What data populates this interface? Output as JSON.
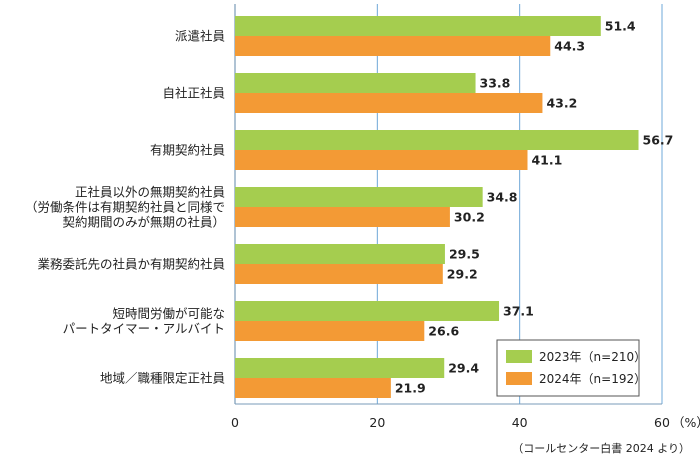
{
  "chart_data": {
    "type": "bar",
    "orientation": "horizontal",
    "categories": [
      [
        "派遣社員"
      ],
      [
        "自社正社員"
      ],
      [
        "有期契約社員"
      ],
      [
        "正社員以外の無期契約社員",
        "（労働条件は有期契約社員と同様で",
        "契約期間のみが無期の社員）"
      ],
      [
        "業務委託先の社員か有期契約社員"
      ],
      [
        "短時間労働が可能な",
        "パートタイマー・アルバイト"
      ],
      [
        "地域／職種限定正社員"
      ]
    ],
    "series": [
      {
        "name": "2023年（n=210）",
        "color": "#a5cd4f",
        "values": [
          51.4,
          33.8,
          56.7,
          34.8,
          29.5,
          37.1,
          29.4
        ],
        "labels": [
          "51.4",
          "33.8",
          "56.7",
          "34.8",
          "29.5",
          "37.1",
          "29.4"
        ]
      },
      {
        "name": "2024年（n=192）",
        "color": "#f39a35",
        "values": [
          44.3,
          43.2,
          41.1,
          30.2,
          29.2,
          26.6,
          21.9
        ],
        "labels": [
          "44.3",
          "43.2",
          "41.1",
          "30.2",
          "29.2",
          "26.6",
          "21.9"
        ]
      }
    ],
    "xlim": [
      0,
      60
    ],
    "x_ticks": [
      0,
      20,
      40,
      60
    ],
    "x_tick_labels": [
      "0",
      "20",
      "40",
      "60"
    ],
    "x_unit": "（%）",
    "grid": true,
    "grid_color": "#6fa8d8",
    "legend_position": "bottom-right",
    "source": "（コールセンター白書 2024 より）"
  }
}
